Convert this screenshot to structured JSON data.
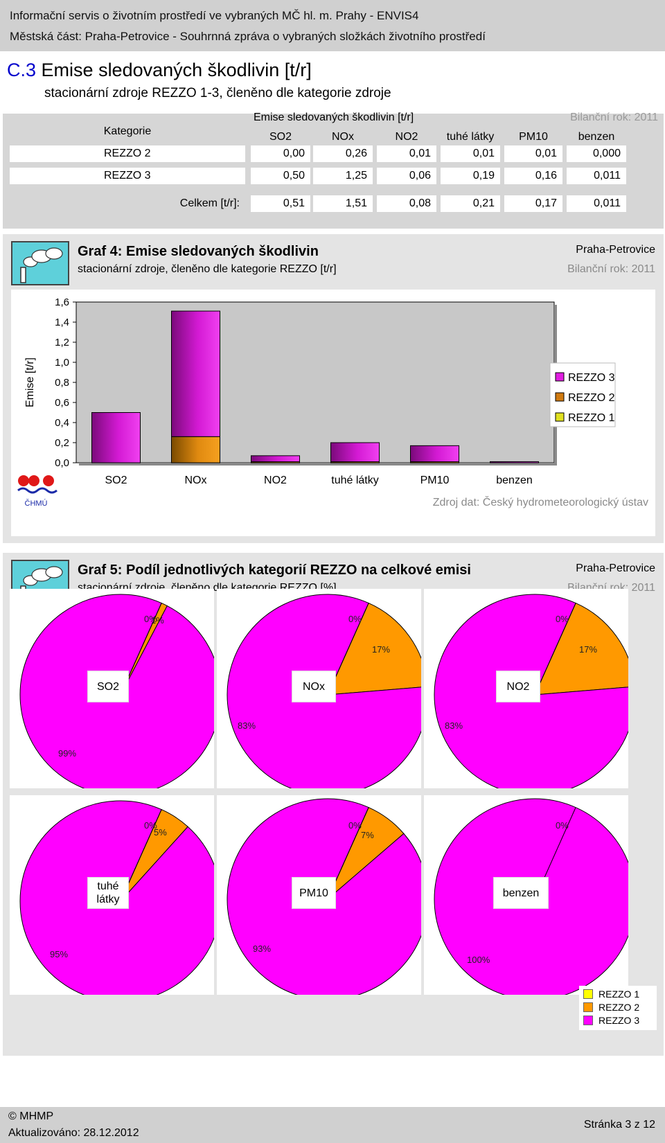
{
  "header": {
    "line1": "Informační servis o životním prostředí ve vybraných MČ hl. m. Prahy - ENVIS4",
    "line2": "Městská část: Praha-Petrovice - Souhrnná zpráva o vybraných složkách životního prostředí"
  },
  "section": {
    "number": "C.3",
    "title": "Emise sledovaných škodlivin [t/r]",
    "subtitle": "stacionární zdroje REZZO 1-3, členěno dle kategorie zdroje"
  },
  "table": {
    "category_label": "Kategorie",
    "group_label": "Emise sledovaných škodlivin [t/r]",
    "year_label": "Bilanční rok: 2011",
    "columns": [
      "SO2",
      "NOx",
      "NO2",
      "tuhé látky",
      "PM10",
      "benzen"
    ],
    "rows": [
      {
        "name": "REZZO 2",
        "values": [
          "0,00",
          "0,26",
          "0,01",
          "0,01",
          "0,01",
          "0,000"
        ]
      },
      {
        "name": "REZZO 3",
        "values": [
          "0,50",
          "1,25",
          "0,06",
          "0,19",
          "0,16",
          "0,011"
        ]
      }
    ],
    "total_label": "Celkem [t/r]:",
    "totals": [
      "0,51",
      "1,51",
      "0,08",
      "0,21",
      "0,17",
      "0,011"
    ]
  },
  "graph4": {
    "title": "Graf 4: Emise sledovaných škodlivin",
    "subtitle": "stacionární zdroje, členěno dle kategorie REZZO [t/r]",
    "place": "Praha-Petrovice",
    "year": "Bilanční rok: 2011",
    "source": "Zdroj dat: Český hydrometeorologický ústav",
    "logo_text": "ČHMÚ"
  },
  "graph5": {
    "title": "Graf 5: Podíl jednotlivých kategorií REZZO na celkové emisi",
    "subtitle": "stacionární zdroje, členěno dle kategorie REZZO [%]",
    "place": "Praha-Petrovice",
    "year": "Bilanční rok: 2011"
  },
  "chart_data": [
    {
      "type": "bar",
      "stacked": true,
      "title": "Graf 4: Emise sledovaných škodlivin",
      "ylabel": "Emise [t/r]",
      "xlabel": "",
      "categories": [
        "SO2",
        "NOx",
        "NO2",
        "tuhé látky",
        "PM10",
        "benzen"
      ],
      "ylim": [
        0,
        1.6
      ],
      "yticks": [
        "0,0",
        "0,2",
        "0,4",
        "0,6",
        "0,8",
        "1,0",
        "1,2",
        "1,4",
        "1,6"
      ],
      "series": [
        {
          "name": "REZZO 1",
          "color": "#ffff33",
          "values": [
            0,
            0,
            0,
            0,
            0,
            0
          ]
        },
        {
          "name": "REZZO 2",
          "color": "#f28c00",
          "values": [
            0.0,
            0.26,
            0.01,
            0.01,
            0.01,
            0.0
          ]
        },
        {
          "name": "REZZO 3",
          "color": "#e01ee0",
          "values": [
            0.5,
            1.25,
            0.06,
            0.19,
            0.16,
            0.011
          ]
        }
      ],
      "legend": [
        "REZZO 3",
        "REZZO 2",
        "REZZO 1"
      ],
      "legend_position": "right",
      "grid": false
    },
    {
      "type": "pie",
      "title": "Graf 5: Podíl jednotlivých kategorií REZZO na celkové emisi",
      "legend": [
        "REZZO 1",
        "REZZO 2",
        "REZZO 3"
      ],
      "colors": {
        "REZZO 1": "#ffff00",
        "REZZO 2": "#ff9900",
        "REZZO 3": "#ff00ff"
      },
      "pies": [
        {
          "name": "SO2",
          "values": [
            0,
            1,
            99
          ],
          "labels": [
            "0%",
            "1%",
            "99%"
          ]
        },
        {
          "name": "NOx",
          "values": [
            0,
            17,
            83
          ],
          "labels": [
            "0%",
            "17%",
            "83%"
          ]
        },
        {
          "name": "NO2",
          "values": [
            0,
            17,
            83
          ],
          "labels": [
            "0%",
            "17%",
            "83%"
          ]
        },
        {
          "name": "tuhé látky",
          "values": [
            0,
            5,
            95
          ],
          "labels": [
            "0%",
            "5%",
            "95%"
          ]
        },
        {
          "name": "PM10",
          "values": [
            0,
            7,
            93
          ],
          "labels": [
            "0%",
            "7%",
            "93%"
          ]
        },
        {
          "name": "benzen",
          "values": [
            0,
            0,
            100
          ],
          "labels": [
            "0%",
            "",
            "100%"
          ]
        }
      ]
    }
  ],
  "footer": {
    "copyright": "© MHMP",
    "updated": "Aktualizováno: 28.12.2012",
    "page": "Stránka 3 z 12"
  }
}
